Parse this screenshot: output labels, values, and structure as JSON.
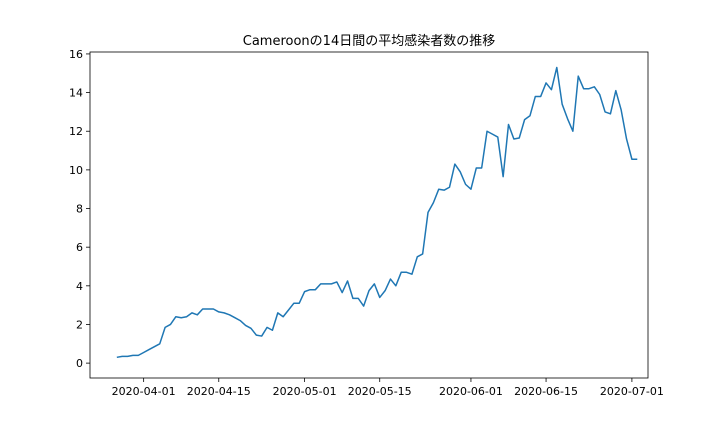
{
  "chart_data": {
    "type": "line",
    "title": "Cameroonの14日間の平均感染者数の推移",
    "xlabel": "",
    "ylabel": "",
    "x_start": "2020-03-27",
    "x_end": "2020-06-30",
    "xlim": [
      "2020-03-22",
      "2020-07-04"
    ],
    "ylim": [
      -0.77,
      16.1
    ],
    "x_ticks": [
      "2020-04-01",
      "2020-04-15",
      "2020-05-01",
      "2020-05-15",
      "2020-06-01",
      "2020-06-15",
      "2020-07-01"
    ],
    "y_ticks": [
      0,
      2,
      4,
      6,
      8,
      10,
      12,
      14,
      16
    ],
    "grid": false,
    "legend": "none",
    "color": "#1f77b4",
    "series": [
      {
        "values": [
          0.3,
          0.35,
          0.35,
          0.4,
          0.4,
          0.55,
          0.7,
          0.85,
          1.0,
          1.85,
          2.0,
          2.4,
          2.35,
          2.4,
          2.6,
          2.5,
          2.8,
          2.8,
          2.8,
          2.65,
          2.6,
          2.5,
          2.35,
          2.2,
          1.95,
          1.8,
          1.45,
          1.4,
          1.85,
          1.7,
          2.6,
          2.4,
          2.75,
          3.1,
          3.1,
          3.7,
          3.8,
          3.8,
          4.1,
          4.1,
          4.1,
          4.2,
          3.65,
          4.25,
          3.35,
          3.35,
          2.95,
          3.75,
          4.1,
          3.4,
          3.75,
          4.35,
          4.0,
          4.7,
          4.7,
          4.6,
          5.5,
          5.65,
          7.8,
          8.3,
          9.0,
          8.95,
          9.1,
          10.3,
          9.9,
          9.25,
          9.0,
          10.1,
          10.1,
          12.0,
          11.85,
          11.7,
          9.65,
          12.35,
          11.6,
          11.65,
          12.6,
          12.8,
          13.8,
          13.8,
          14.5,
          14.15,
          15.3,
          13.4,
          12.65,
          12.0,
          14.85,
          14.2,
          14.2,
          14.3,
          13.9,
          13.0,
          12.9,
          14.1,
          13.1,
          11.6,
          10.55,
          10.55
        ]
      }
    ]
  }
}
